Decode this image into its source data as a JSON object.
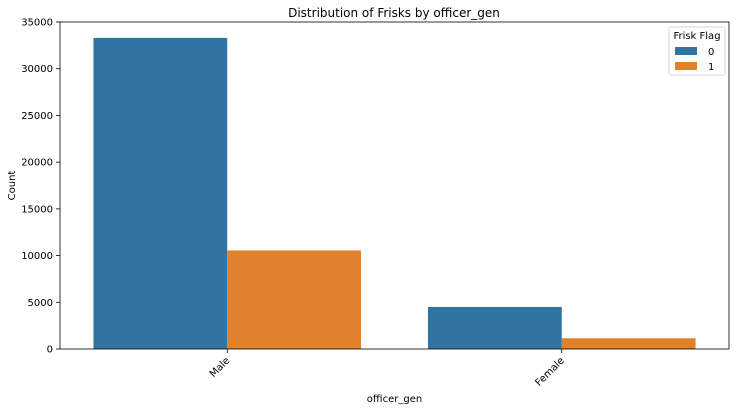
{
  "chart_data": {
    "type": "bar",
    "title": "Distribution of Frisks by officer_gen",
    "xlabel": "officer_gen",
    "ylabel": "Count",
    "categories": [
      "Male",
      "Female"
    ],
    "series": [
      {
        "name": "0",
        "values": [
          33300,
          4500
        ],
        "color": "#3274a1"
      },
      {
        "name": "1",
        "values": [
          10550,
          1150
        ],
        "color": "#e1812c"
      }
    ],
    "ylim": [
      0,
      35000
    ],
    "yticks": [
      "0",
      "5000",
      "10000",
      "15000",
      "20000",
      "25000",
      "30000",
      "35000"
    ],
    "legend": {
      "title": "Frisk Flag",
      "position": "top-right"
    },
    "grid": false
  }
}
